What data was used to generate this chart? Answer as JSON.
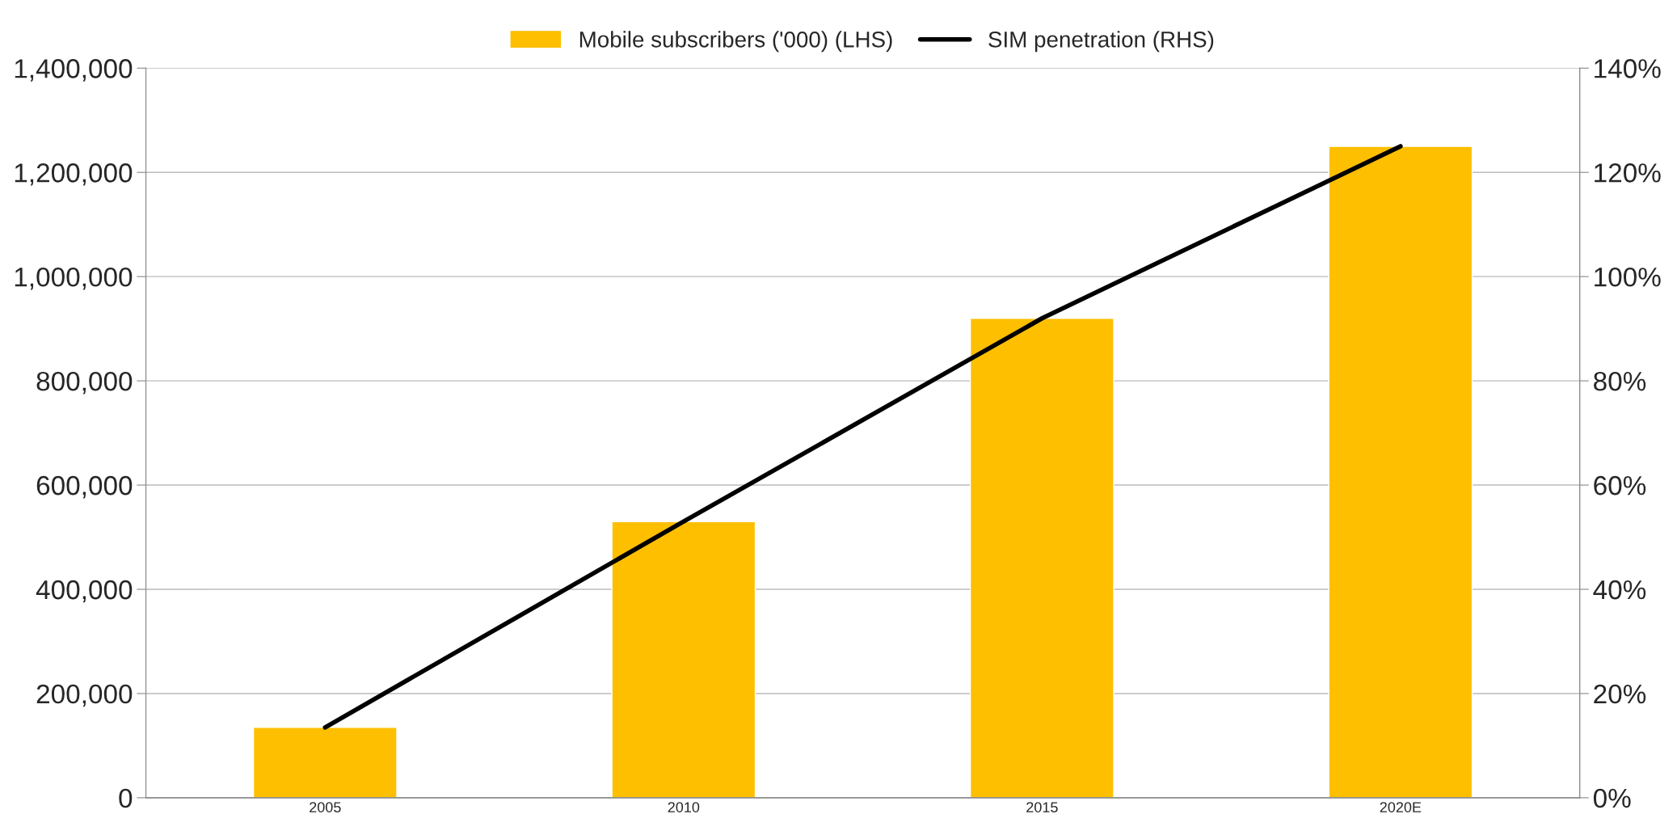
{
  "chart_data": {
    "type": "bar",
    "categories": [
      "2005",
      "2010",
      "2015",
      "2020E"
    ],
    "series": [
      {
        "name": "Mobile subscribers ('000) (LHS)",
        "color": "#fdbf00",
        "values": [
          135000,
          530000,
          920000,
          1250000
        ]
      },
      {
        "name": "SIM penetration (RHS)",
        "type": "line",
        "axis": "y2",
        "color": "#000000",
        "values": [
          13.5,
          53,
          92,
          125
        ]
      }
    ],
    "ylim": [
      0,
      1400000
    ],
    "yticks": [
      {
        "value": 0,
        "label": "0"
      },
      {
        "value": 200000,
        "label": "200,000"
      },
      {
        "value": 400000,
        "label": "400,000"
      },
      {
        "value": 600000,
        "label": "600,000"
      },
      {
        "value": 800000,
        "label": "800,000"
      },
      {
        "value": 1000000,
        "label": "1,000,000"
      },
      {
        "value": 1200000,
        "label": "1,200,000"
      },
      {
        "value": 1400000,
        "label": "1,400,000"
      }
    ],
    "y2lim": [
      0,
      140
    ],
    "y2ticks": [
      {
        "value": 0,
        "label": "0%"
      },
      {
        "value": 20,
        "label": "20%"
      },
      {
        "value": 40,
        "label": "40%"
      },
      {
        "value": 60,
        "label": "60%"
      },
      {
        "value": 80,
        "label": "80%"
      },
      {
        "value": 100,
        "label": "100%"
      },
      {
        "value": 120,
        "label": "120%"
      },
      {
        "value": 140,
        "label": "140%"
      }
    ],
    "grid": "y",
    "legend": "top"
  }
}
